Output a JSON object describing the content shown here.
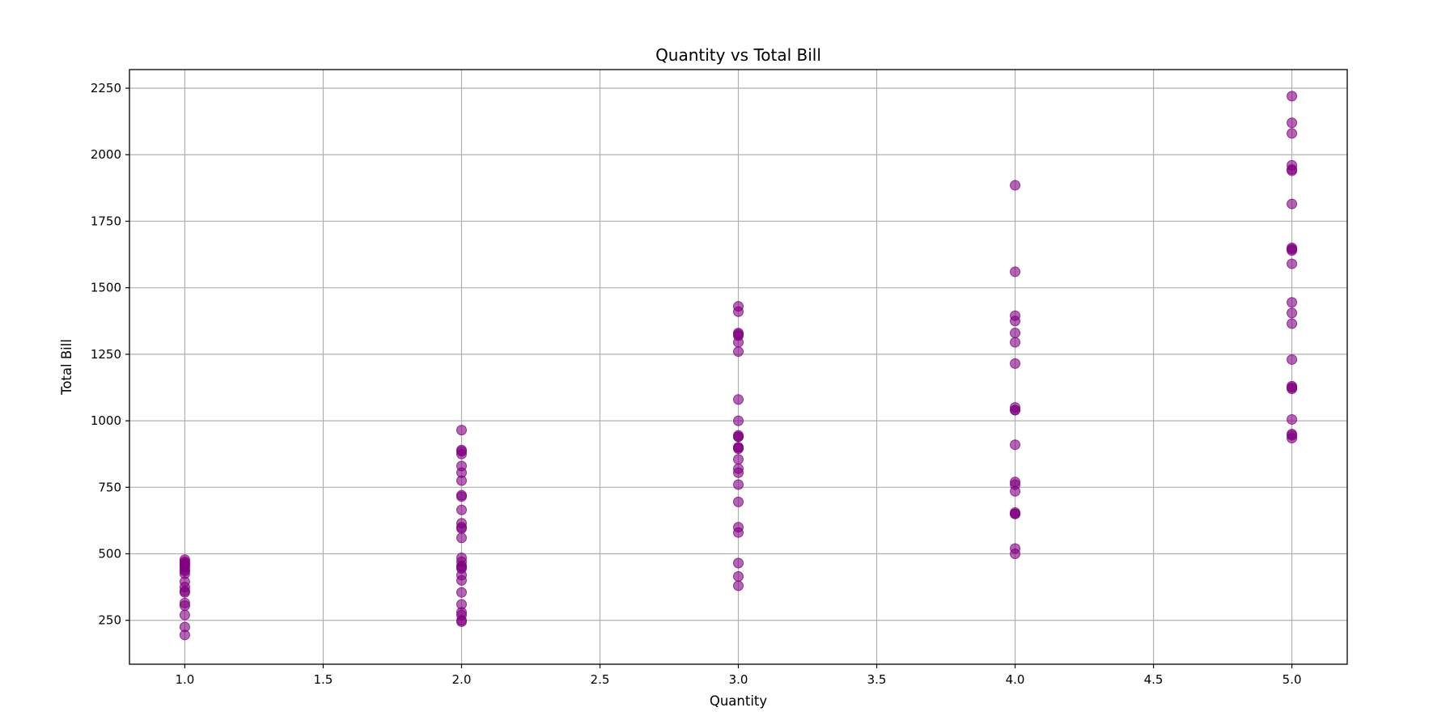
{
  "chart_data": {
    "type": "scatter",
    "title": "Quantity vs Total Bill",
    "xlabel": "Quantity",
    "ylabel": "Total Bill",
    "xlim": [
      0.8,
      5.2
    ],
    "ylim": [
      85,
      2320
    ],
    "xticks": [
      "1.0",
      "1.5",
      "2.0",
      "2.5",
      "3.0",
      "3.5",
      "4.0",
      "4.5",
      "5.0"
    ],
    "yticks": [
      "250",
      "500",
      "750",
      "1000",
      "1250",
      "1500",
      "1750",
      "2000",
      "2250"
    ],
    "grid": true,
    "marker_color": "#800080",
    "marker_alpha": 0.6,
    "series": [
      {
        "x": [
          1,
          1,
          1,
          1,
          1,
          1,
          1,
          1,
          1,
          1,
          1,
          1,
          1,
          1,
          1,
          1,
          1,
          1,
          2,
          2,
          2,
          2,
          2,
          2,
          2,
          2,
          2,
          2,
          2,
          2,
          2,
          2,
          2,
          2,
          2,
          2,
          2,
          2,
          2,
          2,
          2,
          2,
          2,
          2,
          2,
          3,
          3,
          3,
          3,
          3,
          3,
          3,
          3,
          3,
          3,
          3,
          3,
          3,
          3,
          3,
          3,
          3,
          3,
          3,
          3,
          3,
          3,
          3,
          3,
          3,
          4,
          4,
          4,
          4,
          4,
          4,
          4,
          4,
          4,
          4,
          4,
          4,
          4,
          4,
          4,
          4,
          4,
          4,
          4,
          5,
          5,
          5,
          5,
          5,
          5,
          5,
          5,
          5,
          5,
          5,
          5,
          5,
          5,
          5,
          5,
          5,
          5,
          5,
          5,
          5,
          5
        ],
        "y": [
          478,
          470,
          462,
          455,
          435,
          425,
          395,
          375,
          360,
          355,
          315,
          305,
          270,
          225,
          195,
          465,
          450,
          440,
          965,
          890,
          885,
          875,
          830,
          805,
          775,
          720,
          715,
          665,
          615,
          600,
          595,
          560,
          485,
          470,
          455,
          450,
          445,
          420,
          400,
          355,
          310,
          280,
          270,
          250,
          245,
          1430,
          1410,
          1330,
          1320,
          1295,
          1260,
          1080,
          1000,
          945,
          940,
          900,
          895,
          855,
          820,
          805,
          760,
          695,
          600,
          580,
          465,
          415,
          380,
          940,
          900,
          1325,
          1885,
          1560,
          1395,
          1375,
          1330,
          1295,
          1215,
          1050,
          1040,
          910,
          770,
          760,
          735,
          655,
          650,
          520,
          500,
          1040,
          650,
          2220,
          2120,
          2080,
          1960,
          1945,
          1815,
          1650,
          1640,
          1590,
          1445,
          1405,
          1365,
          1230,
          1130,
          1120,
          1005,
          950,
          945,
          935,
          1645,
          1940,
          1125
        ]
      }
    ]
  }
}
